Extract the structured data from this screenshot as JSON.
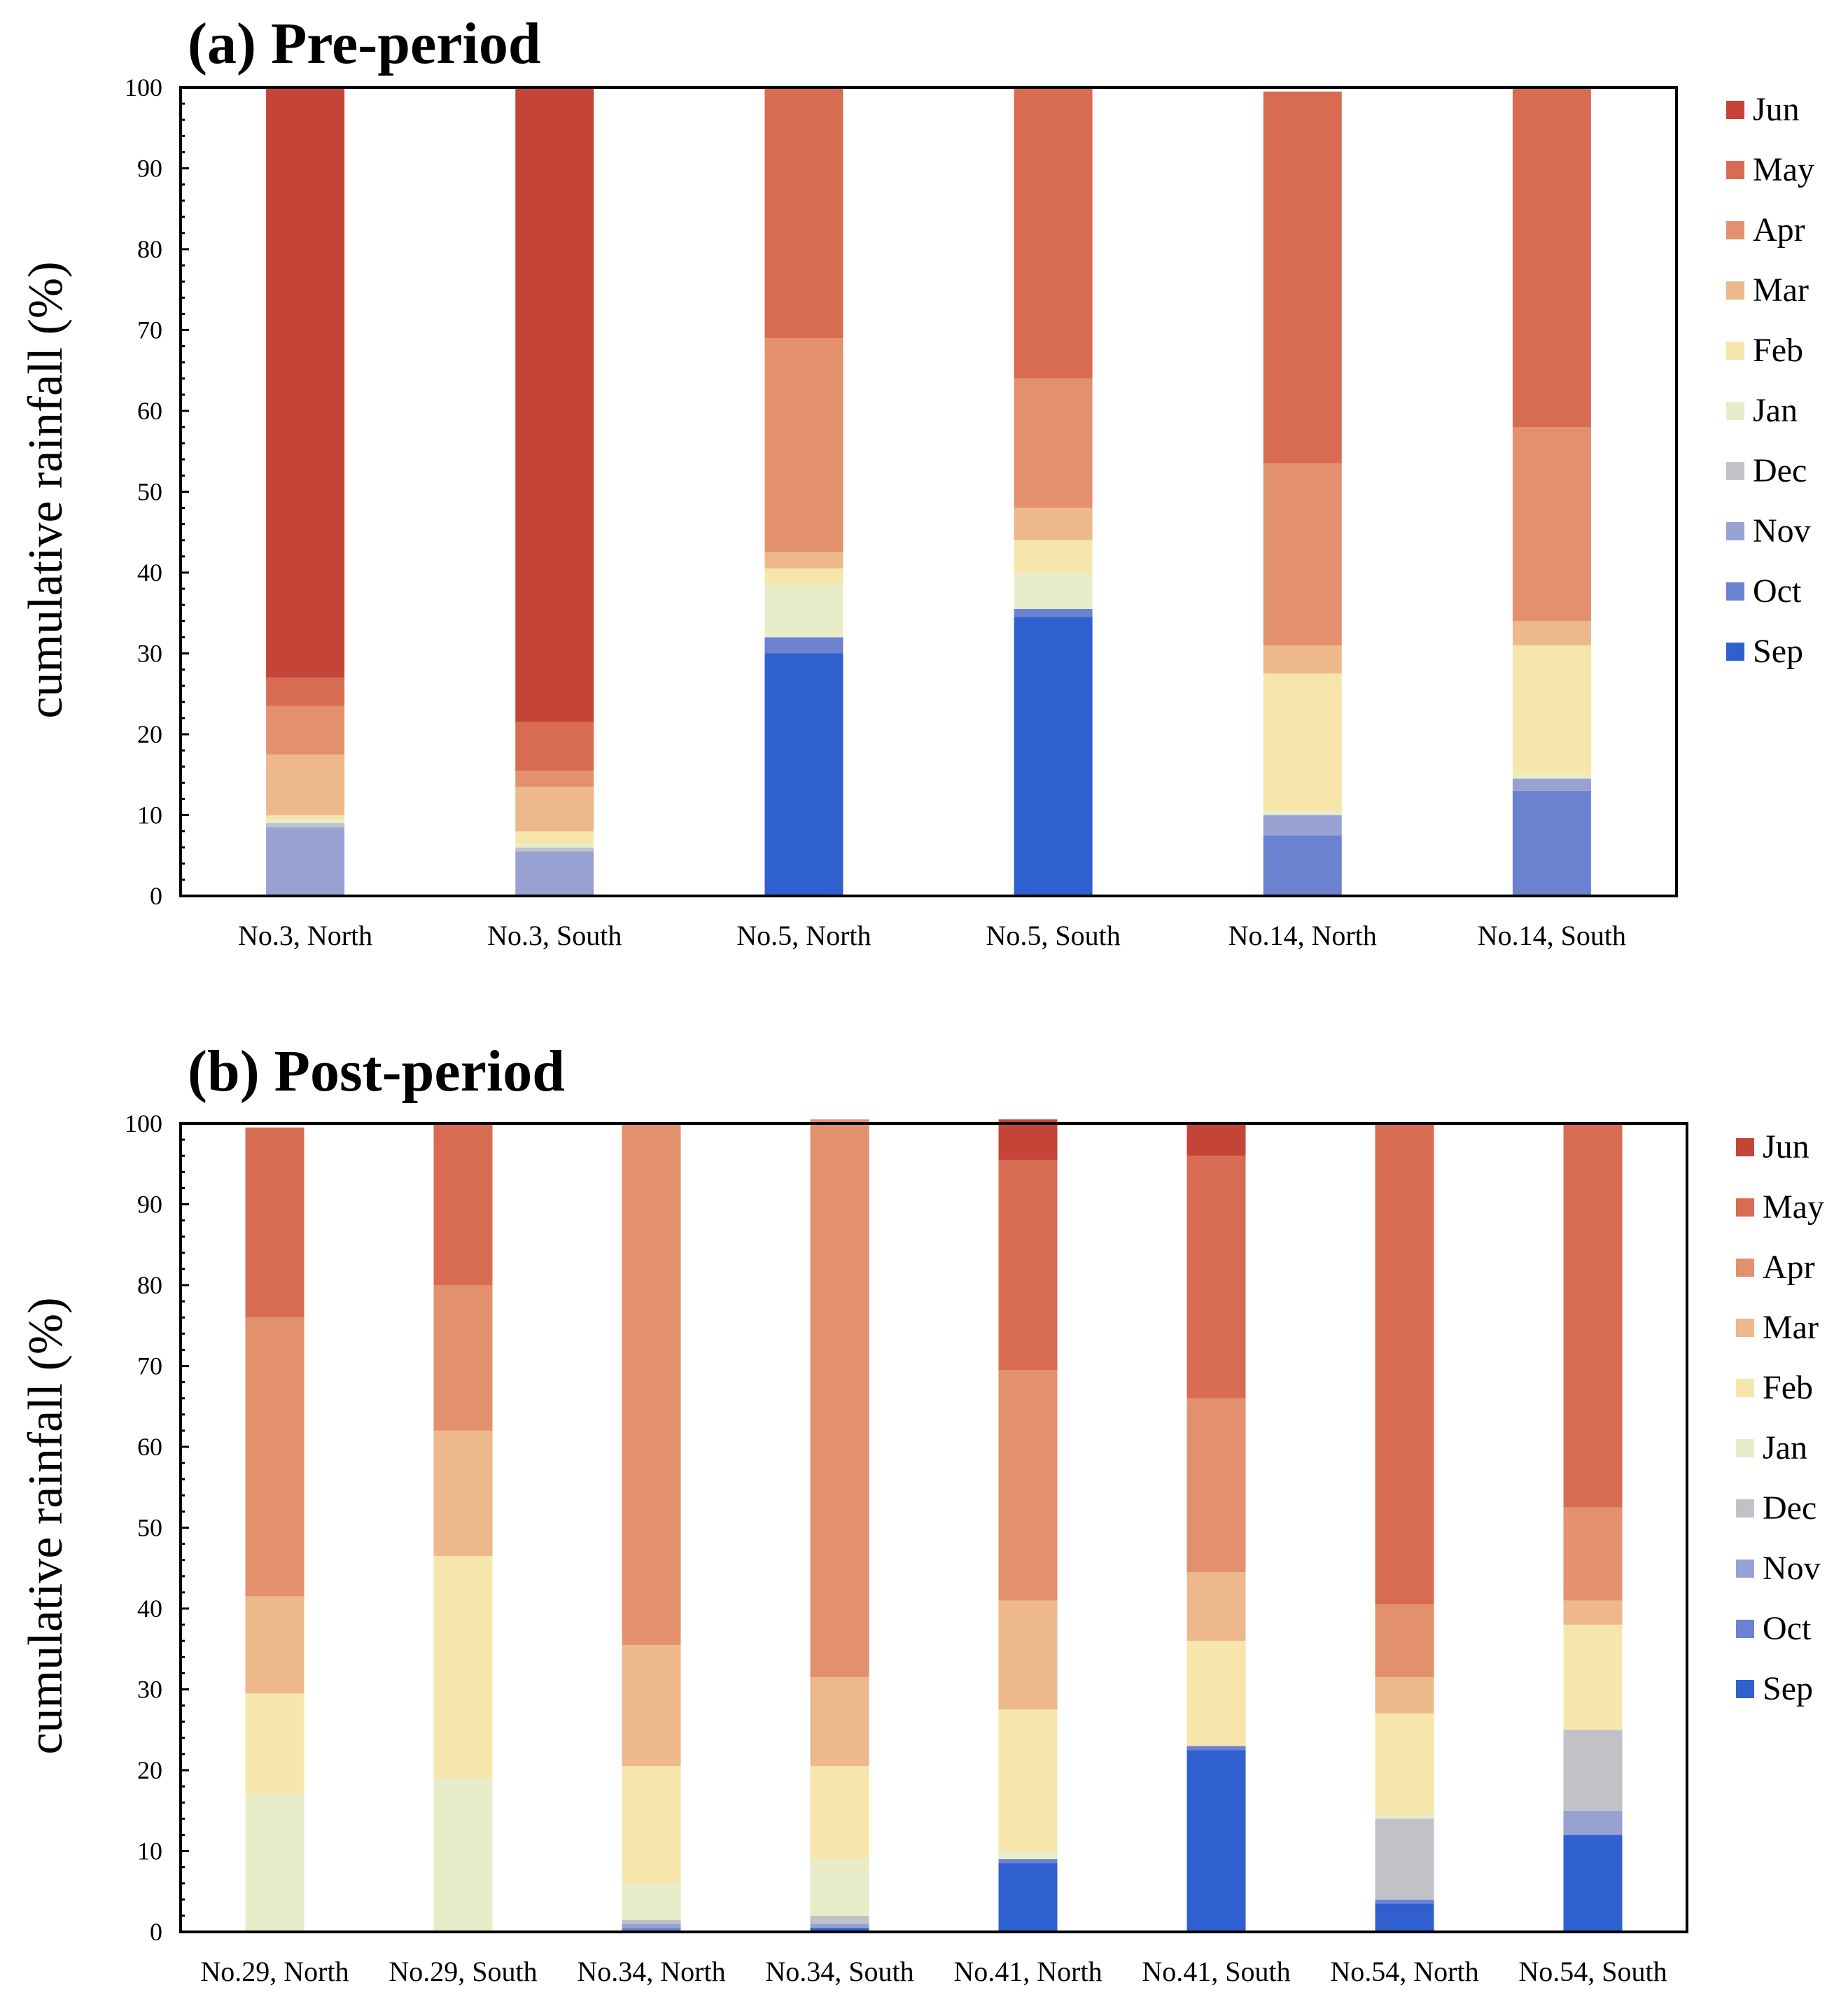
{
  "chart_data": [
    {
      "type": "bar",
      "stacked": true,
      "title": "(a) Pre-period",
      "ylabel": "cumulative rainfall  (%)",
      "ylim": [
        0,
        100
      ],
      "yticks": [
        0,
        10,
        20,
        30,
        40,
        50,
        60,
        70,
        80,
        90,
        100
      ],
      "categories": [
        "No.3, North",
        "No.3, South",
        "No.5, North",
        "No.5, South",
        "No.14, North",
        "No.14, South"
      ],
      "legend_position": "right",
      "grid": false,
      "series": [
        {
          "name": "Sep",
          "color": "#3060d0",
          "values": [
            0,
            0,
            30,
            34.5,
            0,
            0
          ]
        },
        {
          "name": "Oct",
          "color": "#6a82d0",
          "values": [
            0,
            0,
            2,
            1,
            7.5,
            13
          ]
        },
        {
          "name": "Nov",
          "color": "#98a2d2",
          "values": [
            8.5,
            5.5,
            0,
            0,
            2.5,
            1.5
          ]
        },
        {
          "name": "Dec",
          "color": "#c0c2c8",
          "values": [
            0.5,
            0.5,
            0,
            0,
            0,
            0
          ]
        },
        {
          "name": "Jan",
          "color": "#e8ecc8",
          "values": [
            0.5,
            0.5,
            6.5,
            4.5,
            0.5,
            0.5
          ]
        },
        {
          "name": "Feb",
          "color": "#f7e6ac",
          "values": [
            0.5,
            1.5,
            2,
            4,
            17,
            16
          ]
        },
        {
          "name": "Mar",
          "color": "#ecb88c",
          "values": [
            7.5,
            5.5,
            2,
            4,
            3.5,
            3
          ]
        },
        {
          "name": "Apr",
          "color": "#e3906e",
          "values": [
            6,
            2,
            26.5,
            16,
            22.5,
            24
          ]
        },
        {
          "name": "May",
          "color": "#d86c52",
          "values": [
            3.5,
            6,
            31,
            36,
            46,
            42
          ]
        },
        {
          "name": "Jun",
          "color": "#c44438",
          "values": [
            73,
            78.5,
            0,
            0,
            0,
            0
          ]
        }
      ]
    },
    {
      "type": "bar",
      "stacked": true,
      "title": "(b) Post-period",
      "ylabel": "cumulative rainfall  (%)",
      "ylim": [
        0,
        100
      ],
      "yticks": [
        0,
        10,
        20,
        30,
        40,
        50,
        60,
        70,
        80,
        90,
        100
      ],
      "categories": [
        "No.29, North",
        "No.29, South",
        "No.34, North",
        "No.34, South",
        "No.41, North",
        "No.41, South",
        "No.54, North",
        "No.54, South"
      ],
      "legend_position": "right",
      "grid": false,
      "series": [
        {
          "name": "Sep",
          "color": "#3060d0",
          "values": [
            0,
            0,
            0,
            0.5,
            8.5,
            22.5,
            3.5,
            12
          ]
        },
        {
          "name": "Oct",
          "color": "#6a82d0",
          "values": [
            0,
            0,
            0.5,
            0,
            0.5,
            0.5,
            0.5,
            0
          ]
        },
        {
          "name": "Nov",
          "color": "#98a2d2",
          "values": [
            0,
            0,
            0.5,
            0.5,
            0,
            0,
            0,
            3
          ]
        },
        {
          "name": "Dec",
          "color": "#c0c2c8",
          "values": [
            0,
            0,
            0.5,
            1,
            0,
            0,
            10,
            10
          ]
        },
        {
          "name": "Jan",
          "color": "#e8ecc8",
          "values": [
            17,
            19,
            4.5,
            7,
            1,
            0,
            0.5,
            0
          ]
        },
        {
          "name": "Feb",
          "color": "#f7e6ac",
          "values": [
            12.5,
            27.5,
            14.5,
            11.5,
            17.5,
            13,
            12.5,
            13
          ]
        },
        {
          "name": "Mar",
          "color": "#ecb88c",
          "values": [
            12,
            15.5,
            15,
            11,
            13.5,
            8.5,
            4.5,
            3
          ]
        },
        {
          "name": "Apr",
          "color": "#e3906e",
          "values": [
            34.5,
            18,
            64.5,
            69,
            28.5,
            21.5,
            9,
            11.5
          ]
        },
        {
          "name": "May",
          "color": "#d86c52",
          "values": [
            23.5,
            20,
            0,
            0,
            26,
            30,
            59.5,
            47.5
          ]
        },
        {
          "name": "Jun",
          "color": "#c44438",
          "values": [
            0,
            0,
            0,
            0,
            5,
            4,
            0,
            0
          ]
        }
      ]
    }
  ]
}
